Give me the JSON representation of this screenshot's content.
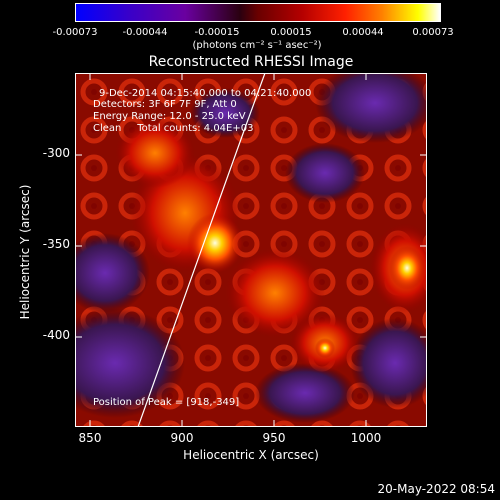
{
  "colorbar": {
    "ticks": [
      "-0.00073",
      "-0.00044",
      "-0.00015",
      "0.00015",
      "0.00044",
      "0.00073"
    ],
    "unit_label": "(photons cm⁻² s⁻¹ asec⁻²)"
  },
  "plot": {
    "title": "Reconstructed RHESSI Image",
    "xlabel": "Heliocentric X (arcsec)",
    "ylabel": "Heliocentric Y (arcsec)",
    "x_ticks": [
      "850",
      "900",
      "950",
      "1000"
    ],
    "y_ticks": [
      "-300",
      "-350",
      "-400"
    ]
  },
  "info": {
    "line1": "9-Dec-2014 04:15:40.000 to 04:21:40.000",
    "line2": "Detectors: 3F 6F 7F 9F, Att 0",
    "line3": "Energy Range: 12.0 - 25.0 keV",
    "line4": "Clean     Total counts: 4.04E+03"
  },
  "peak": {
    "label": "Position of Peak = [918,-349]"
  },
  "footer": {
    "timestamp": "20-May-2022 08:54"
  },
  "colors": {
    "limb_line": "#ffffff",
    "background": "#000000"
  }
}
